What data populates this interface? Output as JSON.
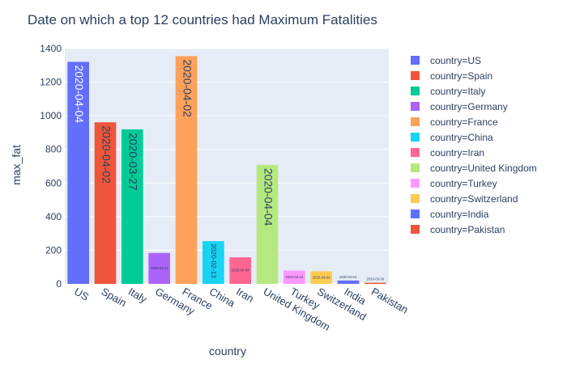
{
  "chart_data": {
    "type": "bar",
    "title": "Date on which a top 12 countries had Maximum Fatalities",
    "xlabel": "country",
    "ylabel": "max_fat",
    "ylim": [
      0,
      1400
    ],
    "yticks": [
      0,
      200,
      400,
      600,
      800,
      1000,
      1200,
      1400
    ],
    "ytick_labels": [
      "0",
      "200",
      "400",
      "600",
      "800",
      "1000",
      "1200",
      "1400"
    ],
    "grid": true,
    "legend_position": "right",
    "series": [
      {
        "name": "country=US",
        "category": "US",
        "value": 1321,
        "date_label": "2020-04-04",
        "color": "#636efa"
      },
      {
        "name": "country=Spain",
        "category": "Spain",
        "value": 961,
        "date_label": "2020-04-02",
        "color": "#EF553B"
      },
      {
        "name": "country=Italy",
        "category": "Italy",
        "value": 919,
        "date_label": "2020-03-27",
        "color": "#00cc96"
      },
      {
        "name": "country=Germany",
        "category": "Germany",
        "value": 184,
        "date_label": "2020-04-11",
        "color": "#ab63fa"
      },
      {
        "name": "country=France",
        "category": "France",
        "value": 1355,
        "date_label": "2020-04-02",
        "color": "#FFA15A"
      },
      {
        "name": "country=China",
        "category": "China",
        "value": 254,
        "date_label": "2020-02-13",
        "color": "#19d3f3"
      },
      {
        "name": "country=Iran",
        "category": "Iran",
        "value": 158,
        "date_label": "2020-04-04",
        "color": "#FF6692"
      },
      {
        "name": "country=United Kingdom",
        "category": "United Kingdom",
        "value": 708,
        "date_label": "2020-04-04",
        "color": "#B6E880"
      },
      {
        "name": "country=Turkey",
        "category": "Turkey",
        "value": 79,
        "date_label": "2020-04-10",
        "color": "#FF97FF"
      },
      {
        "name": "country=Switzerland",
        "category": "Switzerland",
        "value": 75,
        "date_label": "2020-04-04",
        "color": "#FECB52"
      },
      {
        "name": "country=India",
        "category": "India",
        "value": 20,
        "date_label": "2020-04-01",
        "color": "#636efa"
      },
      {
        "name": "country=Pakistan",
        "category": "Pakistan",
        "value": 7,
        "date_label": "2020-03-30",
        "color": "#EF553B"
      }
    ]
  }
}
